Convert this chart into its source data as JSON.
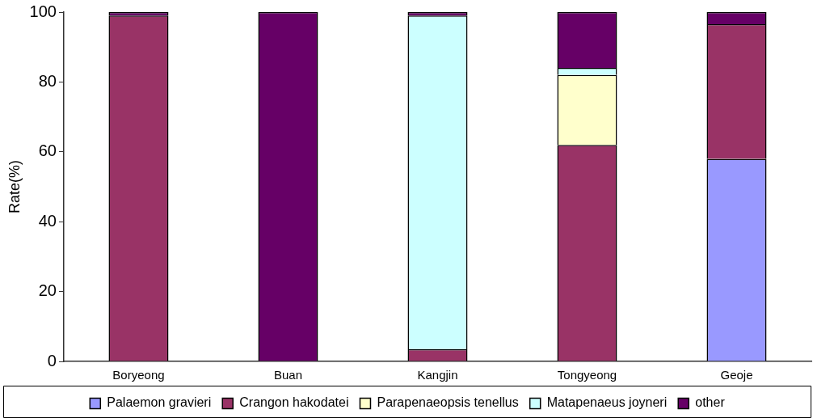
{
  "chart_data": {
    "type": "bar",
    "stacked": true,
    "ylabel": "Rate(%)",
    "categories": [
      "Boryeong",
      "Buan",
      "Kangjin",
      "Tongyeong",
      "Geoje"
    ],
    "series": [
      {
        "name": "Palaemon gravieri",
        "color": "#9999ff",
        "values": [
          0,
          0,
          0,
          0,
          58
        ]
      },
      {
        "name": "Crangon hakodatei",
        "color": "#993366",
        "values": [
          99,
          0,
          3.5,
          62,
          38.5
        ]
      },
      {
        "name": "Parapenaeopsis tenellus",
        "color": "#ffffcc",
        "values": [
          0,
          0,
          0,
          20,
          0
        ]
      },
      {
        "name": "Matapenaeus joyneri",
        "color": "#ccffff",
        "values": [
          0,
          0,
          95.5,
          2,
          0
        ]
      },
      {
        "name": "other",
        "color": "#660066",
        "values": [
          1,
          100,
          1,
          16,
          3.5
        ]
      }
    ],
    "ylim": [
      0,
      100
    ],
    "yticks": [
      0,
      20,
      40,
      60,
      80,
      100
    ],
    "grid": false,
    "legend": "bottom"
  }
}
